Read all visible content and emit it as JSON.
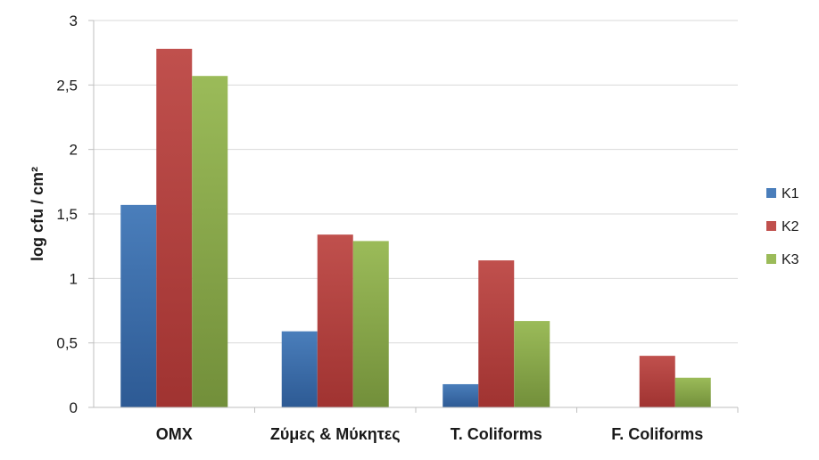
{
  "chart_data": {
    "type": "bar",
    "ylabel": "log cfu / cm²",
    "xlabel": "",
    "title": "",
    "categories": [
      "OMX",
      "Ζύμες & Μύκητες",
      "T. Coliforms",
      "F. Coliforms"
    ],
    "series": [
      {
        "name": "K1",
        "values": [
          1.57,
          0.59,
          0.18,
          0
        ],
        "color": "#4a7ebb",
        "color_dark": "#2d5a94"
      },
      {
        "name": "K2",
        "values": [
          2.78,
          1.34,
          1.14,
          0.4
        ],
        "color": "#c0504d",
        "color_dark": "#a03331"
      },
      {
        "name": "K3",
        "values": [
          2.57,
          1.29,
          0.67,
          0.23
        ],
        "color": "#9bbb59",
        "color_dark": "#728f3a"
      }
    ],
    "ylim": [
      0,
      3
    ],
    "yticks": [
      "0",
      "0,5",
      "1",
      "1,5",
      "2",
      "2,5",
      "3"
    ],
    "grid": true,
    "legend_position": "right"
  }
}
